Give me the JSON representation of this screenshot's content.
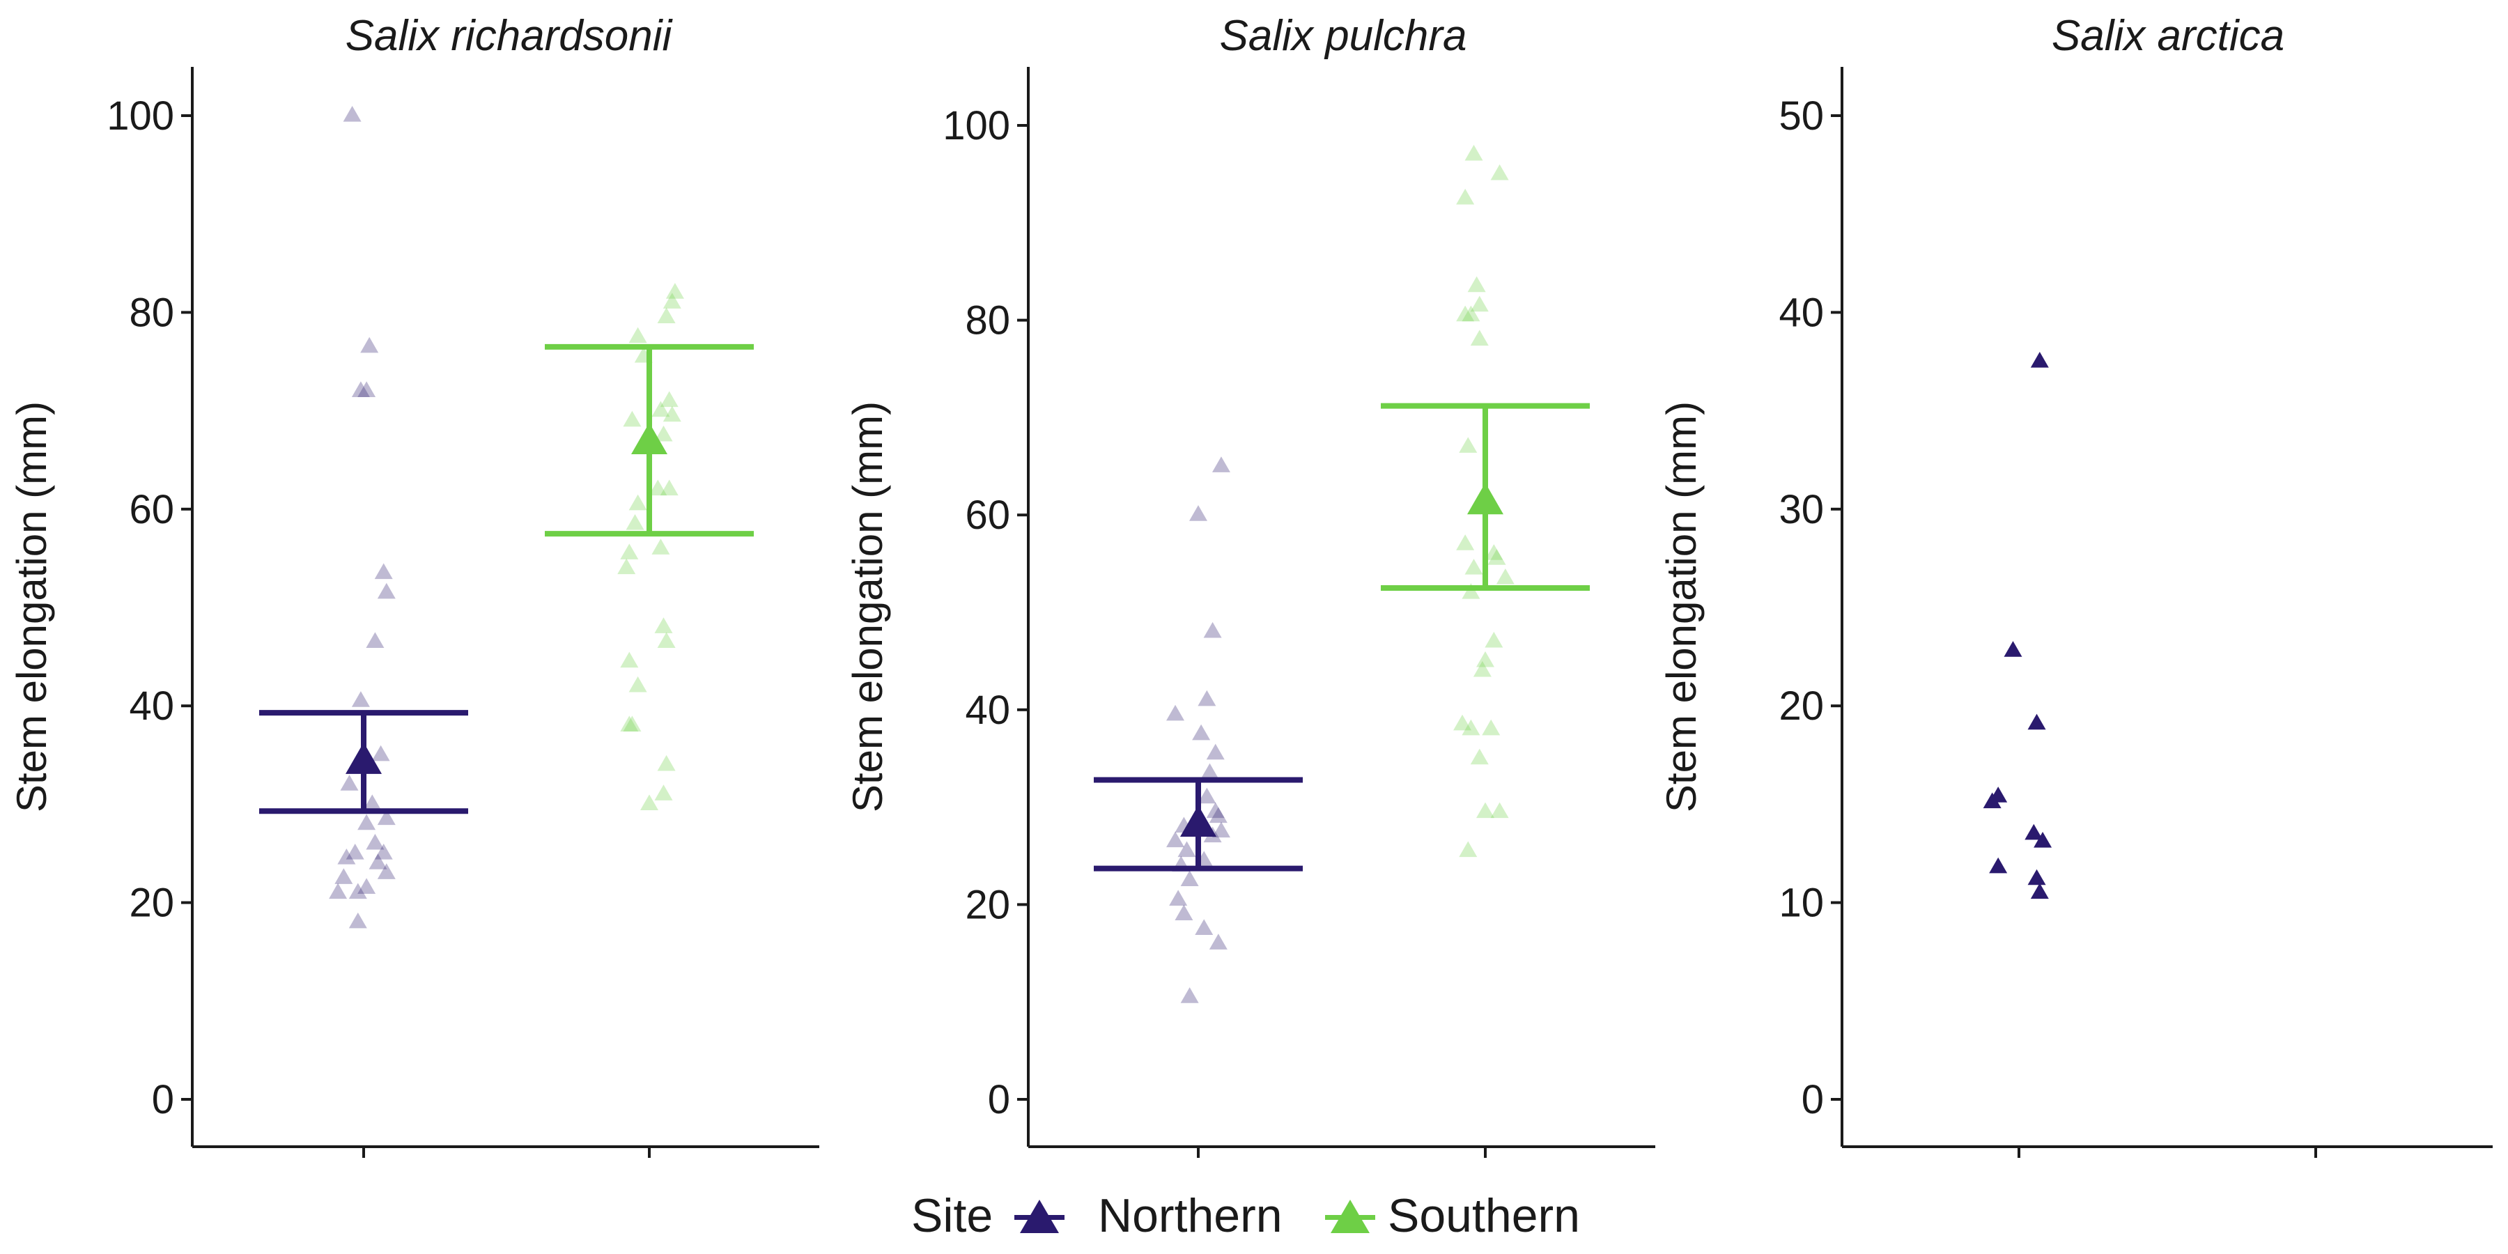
{
  "colors": {
    "northern": "#2a1a6e",
    "southern": "#6ecf46",
    "axis": "#1a1a1a"
  },
  "legend": {
    "title": "Site",
    "position": "bottom",
    "items": [
      {
        "key": "northern",
        "label": "Northern",
        "icon": "triangle-icon"
      },
      {
        "key": "southern",
        "label": "Southern",
        "icon": "triangle-icon"
      }
    ]
  },
  "chart_data": [
    {
      "type": "scatter",
      "title": "Salix richardsonii",
      "ylabel": "Stem elongation (mm)",
      "ylim": [
        -5,
        105
      ],
      "yticks": [
        0,
        20,
        40,
        60,
        80,
        100
      ],
      "categories": [
        "Northern",
        "Southern"
      ],
      "series": [
        {
          "site": "northern",
          "mean": 34.3,
          "ci_low": 29.3,
          "ci_high": 39.3,
          "points": [
            {
              "x": -0.04,
              "y": 100
            },
            {
              "x": 0.02,
              "y": 76.5
            },
            {
              "x": -0.01,
              "y": 72
            },
            {
              "x": 0.01,
              "y": 72
            },
            {
              "x": 0.07,
              "y": 53.5
            },
            {
              "x": 0.08,
              "y": 51.5
            },
            {
              "x": 0.04,
              "y": 46.5
            },
            {
              "x": -0.01,
              "y": 40.5
            },
            {
              "x": 0.06,
              "y": 35
            },
            {
              "x": -0.05,
              "y": 32
            },
            {
              "x": 0.03,
              "y": 30
            },
            {
              "x": 0.01,
              "y": 28
            },
            {
              "x": 0.08,
              "y": 28.5
            },
            {
              "x": 0.04,
              "y": 26
            },
            {
              "x": -0.03,
              "y": 25
            },
            {
              "x": 0.07,
              "y": 25
            },
            {
              "x": 0.05,
              "y": 24
            },
            {
              "x": -0.06,
              "y": 24.5
            },
            {
              "x": 0.08,
              "y": 23
            },
            {
              "x": -0.07,
              "y": 22.5
            },
            {
              "x": 0.01,
              "y": 21.5
            },
            {
              "x": -0.02,
              "y": 21
            },
            {
              "x": -0.09,
              "y": 21
            },
            {
              "x": -0.02,
              "y": 18
            }
          ]
        },
        {
          "site": "southern",
          "mean": 66.8,
          "ci_low": 57.5,
          "ci_high": 76.5,
          "points": [
            {
              "x": 0.09,
              "y": 82
            },
            {
              "x": 0.08,
              "y": 81
            },
            {
              "x": 0.06,
              "y": 79.5
            },
            {
              "x": -0.04,
              "y": 77.5
            },
            {
              "x": -0.02,
              "y": 75.5
            },
            {
              "x": 0.07,
              "y": 71
            },
            {
              "x": 0.04,
              "y": 70
            },
            {
              "x": 0.08,
              "y": 69.5
            },
            {
              "x": -0.06,
              "y": 69
            },
            {
              "x": 0.05,
              "y": 67.5
            },
            {
              "x": 0.07,
              "y": 62
            },
            {
              "x": 0.03,
              "y": 62
            },
            {
              "x": -0.04,
              "y": 60.5
            },
            {
              "x": -0.05,
              "y": 58.5
            },
            {
              "x": 0.04,
              "y": 56
            },
            {
              "x": -0.07,
              "y": 55.5
            },
            {
              "x": -0.08,
              "y": 54
            },
            {
              "x": 0.05,
              "y": 48
            },
            {
              "x": 0.06,
              "y": 46.5
            },
            {
              "x": -0.07,
              "y": 44.5
            },
            {
              "x": -0.04,
              "y": 42
            },
            {
              "x": -0.07,
              "y": 38
            },
            {
              "x": -0.06,
              "y": 38
            },
            {
              "x": 0.06,
              "y": 34
            },
            {
              "x": 0.05,
              "y": 31
            },
            {
              "x": 0.0,
              "y": 30
            }
          ]
        }
      ]
    },
    {
      "type": "scatter",
      "title": "Salix pulchra",
      "ylabel": "Stem elongation (mm)",
      "ylim": [
        -5,
        104
      ],
      "yticks": [
        0,
        20,
        40,
        60,
        80,
        100
      ],
      "categories": [
        "Northern",
        "Southern"
      ],
      "series": [
        {
          "site": "northern",
          "mean": 28.2,
          "ci_low": 23.7,
          "ci_high": 32.8,
          "points": [
            {
              "x": 0.08,
              "y": 65
            },
            {
              "x": 0.0,
              "y": 60
            },
            {
              "x": 0.05,
              "y": 48
            },
            {
              "x": 0.03,
              "y": 41
            },
            {
              "x": -0.08,
              "y": 39.5
            },
            {
              "x": 0.01,
              "y": 37.5
            },
            {
              "x": 0.06,
              "y": 35.5
            },
            {
              "x": 0.04,
              "y": 33.5
            },
            {
              "x": 0.03,
              "y": 31
            },
            {
              "x": 0.06,
              "y": 29.5
            },
            {
              "x": 0.07,
              "y": 29
            },
            {
              "x": -0.05,
              "y": 28
            },
            {
              "x": 0.08,
              "y": 27.5
            },
            {
              "x": -0.08,
              "y": 26.5
            },
            {
              "x": 0.05,
              "y": 27
            },
            {
              "x": -0.04,
              "y": 25.5
            },
            {
              "x": -0.06,
              "y": 24
            },
            {
              "x": 0.02,
              "y": 24.5
            },
            {
              "x": -0.03,
              "y": 22.5
            },
            {
              "x": -0.07,
              "y": 20.5
            },
            {
              "x": -0.05,
              "y": 19
            },
            {
              "x": 0.02,
              "y": 17.5
            },
            {
              "x": 0.07,
              "y": 16
            },
            {
              "x": -0.03,
              "y": 10.5
            }
          ]
        },
        {
          "site": "southern",
          "mean": 61.3,
          "ci_low": 52.5,
          "ci_high": 71.2,
          "points": [
            {
              "x": -0.04,
              "y": 97
            },
            {
              "x": 0.05,
              "y": 95
            },
            {
              "x": -0.07,
              "y": 92.5
            },
            {
              "x": -0.03,
              "y": 83.5
            },
            {
              "x": -0.02,
              "y": 81.5
            },
            {
              "x": -0.07,
              "y": 80.5
            },
            {
              "x": -0.05,
              "y": 80.5
            },
            {
              "x": -0.02,
              "y": 78
            },
            {
              "x": -0.06,
              "y": 67
            },
            {
              "x": -0.07,
              "y": 57
            },
            {
              "x": 0.04,
              "y": 55.5
            },
            {
              "x": 0.03,
              "y": 56
            },
            {
              "x": -0.04,
              "y": 54.5
            },
            {
              "x": 0.07,
              "y": 53.5
            },
            {
              "x": -0.05,
              "y": 52
            },
            {
              "x": 0.03,
              "y": 47
            },
            {
              "x": 0.0,
              "y": 45
            },
            {
              "x": -0.01,
              "y": 44
            },
            {
              "x": -0.08,
              "y": 38.5
            },
            {
              "x": 0.02,
              "y": 38
            },
            {
              "x": -0.05,
              "y": 38
            },
            {
              "x": -0.02,
              "y": 35
            },
            {
              "x": 0.0,
              "y": 29.5
            },
            {
              "x": 0.05,
              "y": 29.5
            },
            {
              "x": -0.06,
              "y": 25.5
            }
          ]
        }
      ]
    },
    {
      "type": "scatter",
      "title": "Salix arctica",
      "ylabel": "Stem elongation (mm)",
      "ylim": [
        -2.5,
        52.5
      ],
      "yticks": [
        0,
        10,
        20,
        30,
        40,
        50
      ],
      "categories": [
        "Northern",
        "Southern"
      ],
      "series": [
        {
          "site": "northern",
          "points": [
            {
              "x": 0.07,
              "y": 37.5
            },
            {
              "x": -0.02,
              "y": 22.8
            },
            {
              "x": 0.06,
              "y": 19.1
            },
            {
              "x": -0.07,
              "y": 15.4
            },
            {
              "x": -0.09,
              "y": 15.1
            },
            {
              "x": 0.05,
              "y": 13.5
            },
            {
              "x": 0.08,
              "y": 13.1
            },
            {
              "x": -0.07,
              "y": 11.8
            },
            {
              "x": 0.06,
              "y": 11.2
            },
            {
              "x": 0.07,
              "y": 10.5
            }
          ]
        }
      ]
    }
  ]
}
